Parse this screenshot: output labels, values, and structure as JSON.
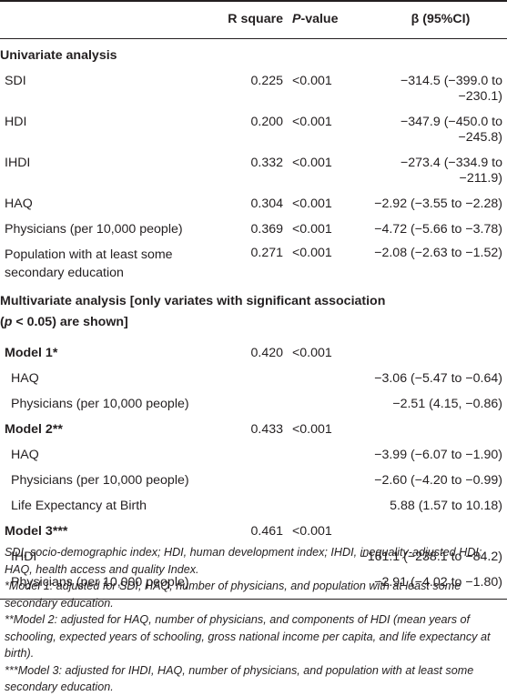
{
  "header": {
    "col1": "",
    "col2": "R square",
    "col3_italic": "P",
    "col3_rest": "-value",
    "col4": "β (95%CI)"
  },
  "univariate": {
    "title": "Univariate analysis",
    "rows": [
      {
        "label": "SDI",
        "r2": "0.225",
        "p": "<0.001",
        "beta": "−314.5 (−399.0 to −230.1)"
      },
      {
        "label": "HDI",
        "r2": "0.200",
        "p": "<0.001",
        "beta": "−347.9 (−450.0 to −245.8)"
      },
      {
        "label": "IHDI",
        "r2": "0.332",
        "p": "<0.001",
        "beta": "−273.4 (−334.9 to −211.9)"
      },
      {
        "label": "HAQ",
        "r2": "0.304",
        "p": "<0.001",
        "beta": "−2.92 (−3.55 to −2.28)"
      },
      {
        "label": "Physicians (per 10,000 people)",
        "r2": "0.369",
        "p": "<0.001",
        "beta": "−4.72 (−5.66 to −3.78)"
      },
      {
        "label_line1": "Population with at least some",
        "label_line2": "secondary education",
        "r2": "0.271",
        "p": "<0.001",
        "beta": "−2.08 (−2.63 to −1.52)"
      }
    ]
  },
  "multivariate": {
    "title_line1": "Multivariate analysis [only variates with significant association",
    "title_line2_open": "(",
    "title_line2_italic": "p",
    "title_line2_rest": " < 0.05) are shown]",
    "models": [
      {
        "name": "Model 1*",
        "r2": "0.420",
        "p": "<0.001",
        "rows": [
          {
            "label": "HAQ",
            "beta": "−3.06 (−5.47 to −0.64)"
          },
          {
            "label": "Physicians (per 10,000 people)",
            "beta": "−2.51 (4.15, −0.86)"
          }
        ]
      },
      {
        "name": "Model 2**",
        "r2": "0.433",
        "p": "<0.001",
        "rows": [
          {
            "label": "HAQ",
            "beta": "−3.99 (−6.07 to −1.90)"
          },
          {
            "label": "Physicians (per 10,000 people)",
            "beta": "−2.60 (−4.20 to −0.99)"
          },
          {
            "label": "Life Expectancy at Birth",
            "beta": "5.88 (1.57 to 10.18)"
          }
        ]
      },
      {
        "name": "Model 3***",
        "r2": "0.461",
        "p": "<0.001",
        "rows": [
          {
            "label": "IHDI",
            "beta": "−161.1 (−238.1 to −84.2)"
          },
          {
            "label": "Physicians (per 10,000 people)",
            "beta": "−2.91 (−4.02 to −1.80)"
          }
        ]
      }
    ]
  },
  "footnotes": {
    "abbrev": "SDI, socio-demographic index; HDI, human development index; IHDI, inequality-adjusted HDI; HAQ, health access and quality Index.",
    "model1": "*Model 1: adjusted for SDI, HAQ, number of physicians, and population with at least some secondary education.",
    "model2": "**Model 2: adjusted for HAQ, number of physicians, and components of HDI (mean years of schooling, expected years of schooling, gross national income per capita, and life expectancy at birth).",
    "model3": "***Model 3: adjusted for IHDI, HAQ, number of physicians, and population with at least some secondary education."
  }
}
